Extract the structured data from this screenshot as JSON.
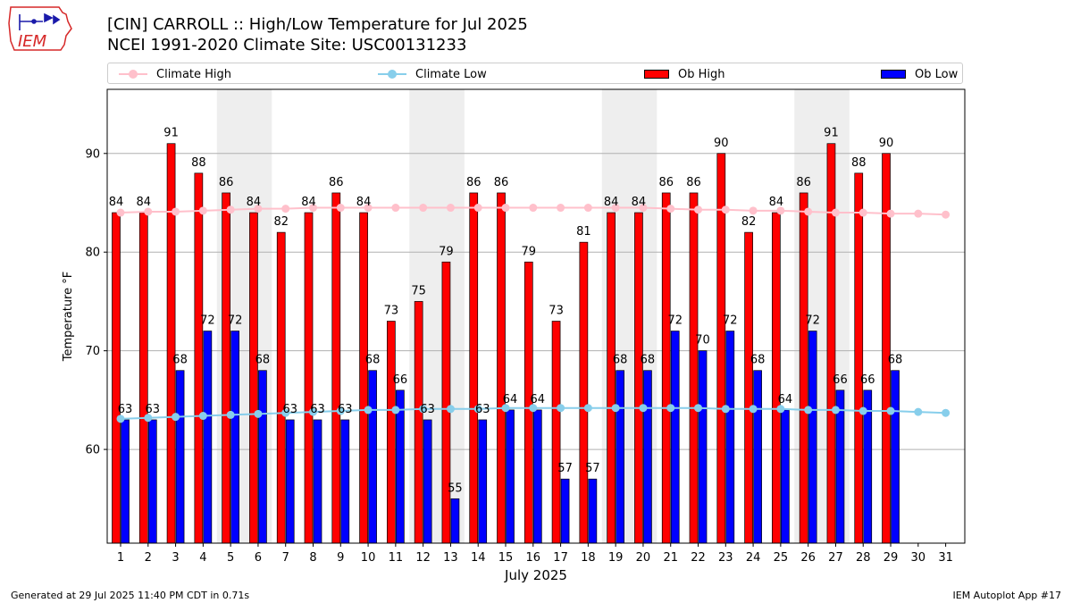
{
  "logo": {
    "text": "IEM",
    "color": "#d62828"
  },
  "title_line1": "[CIN] CARROLL :: High/Low Temperature for Jul 2025",
  "title_line2": "NCEI 1991-2020 Climate Site: USC00131233",
  "footer": {
    "left": "Generated at 29 Jul 2025 11:40 PM CDT in 0.71s",
    "right": "IEM Autoplot App #17"
  },
  "legend": [
    {
      "key": "climate_high",
      "label": "Climate High",
      "kind": "line",
      "color": "#ffc0cb"
    },
    {
      "key": "climate_low",
      "label": "Climate Low",
      "kind": "line",
      "color": "#87ceeb"
    },
    {
      "key": "ob_high",
      "label": "Ob High",
      "kind": "rect",
      "color": "#ff0000"
    },
    {
      "key": "ob_low",
      "label": "Ob Low",
      "kind": "rect",
      "color": "#0000ff"
    }
  ],
  "chart_data": {
    "type": "bar",
    "title": "[CIN] CARROLL :: High/Low Temperature for Jul 2025",
    "xlabel": "July 2025",
    "ylabel": "Temperature °F",
    "ylim": [
      50.5,
      96.5
    ],
    "yticks": [
      60,
      70,
      80,
      90
    ],
    "grid": true,
    "categories": [
      "1",
      "2",
      "3",
      "4",
      "5",
      "6",
      "7",
      "8",
      "9",
      "10",
      "11",
      "12",
      "13",
      "14",
      "15",
      "16",
      "17",
      "18",
      "19",
      "20",
      "21",
      "22",
      "23",
      "24",
      "25",
      "26",
      "27",
      "28",
      "29",
      "30",
      "31"
    ],
    "weekend_shading_days": [
      [
        5,
        6
      ],
      [
        12,
        13
      ],
      [
        19,
        20
      ],
      [
        26,
        27
      ]
    ],
    "series": [
      {
        "name": "Ob High",
        "kind": "bar",
        "color": "#ff0000",
        "values": [
          84,
          84,
          91,
          88,
          86,
          84,
          82,
          84,
          86,
          84,
          73,
          75,
          79,
          86,
          86,
          79,
          73,
          81,
          84,
          84,
          86,
          86,
          90,
          82,
          84,
          86,
          91,
          88,
          90,
          null,
          null
        ]
      },
      {
        "name": "Ob Low",
        "kind": "bar",
        "color": "#0000ff",
        "values": [
          63,
          63,
          68,
          72,
          72,
          68,
          63,
          63,
          63,
          68,
          66,
          63,
          55,
          63,
          64,
          64,
          57,
          57,
          68,
          68,
          72,
          70,
          72,
          68,
          64,
          72,
          66,
          66,
          68,
          null,
          null
        ]
      },
      {
        "name": "Climate High",
        "kind": "line",
        "color": "#ffc0cb",
        "values": [
          84.0,
          84.1,
          84.1,
          84.2,
          84.3,
          84.4,
          84.4,
          84.5,
          84.5,
          84.5,
          84.5,
          84.5,
          84.5,
          84.5,
          84.5,
          84.5,
          84.5,
          84.5,
          84.5,
          84.5,
          84.4,
          84.3,
          84.3,
          84.2,
          84.2,
          84.1,
          84.0,
          84.0,
          83.9,
          83.9,
          83.8
        ]
      },
      {
        "name": "Climate Low",
        "kind": "line",
        "color": "#87ceeb",
        "values": [
          63.1,
          63.2,
          63.3,
          63.4,
          63.5,
          63.6,
          63.7,
          63.8,
          63.9,
          64.0,
          64.0,
          64.1,
          64.1,
          64.1,
          64.2,
          64.2,
          64.2,
          64.2,
          64.2,
          64.2,
          64.2,
          64.2,
          64.1,
          64.1,
          64.1,
          64.0,
          64.0,
          63.9,
          63.9,
          63.8,
          63.7
        ]
      }
    ]
  }
}
